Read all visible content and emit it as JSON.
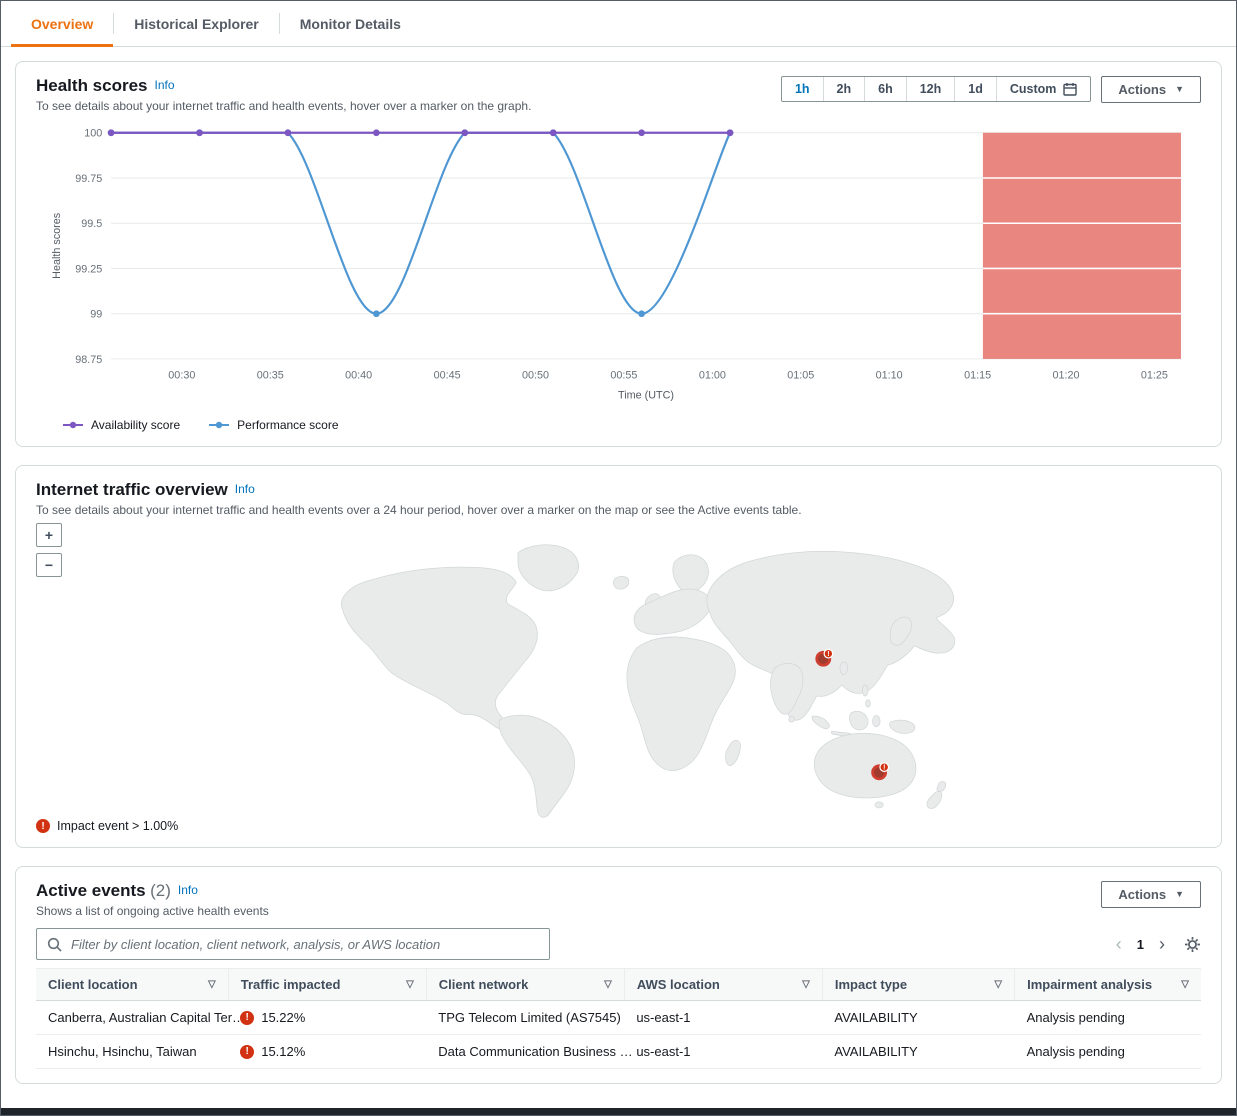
{
  "tabs": [
    {
      "label": "Overview",
      "active": true
    },
    {
      "label": "Historical Explorer",
      "active": false
    },
    {
      "label": "Monitor Details",
      "active": false
    }
  ],
  "icons": {
    "caret": "▼",
    "filter": "▽",
    "prev": "‹",
    "next": "›",
    "error": "!"
  },
  "health_scores": {
    "title": "Health scores",
    "info_label": "Info",
    "description": "To see details about your internet traffic and health events, hover over a marker on the graph.",
    "range_options": [
      "1h",
      "2h",
      "6h",
      "12h",
      "1d",
      "Custom"
    ],
    "selected_range": "1h",
    "actions_label": "Actions",
    "legend": [
      {
        "label": "Availability score",
        "color": "#7d57c1"
      },
      {
        "label": "Performance score",
        "color": "#4e97d3"
      }
    ]
  },
  "chart_data": {
    "type": "line",
    "title": "Health scores",
    "xlabel": "Time (UTC)",
    "ylabel": "Health scores",
    "x_ticks": [
      "00:30",
      "00:35",
      "00:40",
      "00:45",
      "00:50",
      "00:55",
      "01:00",
      "01:05",
      "01:10",
      "01:15",
      "01:20",
      "01:25"
    ],
    "x_tick_minutes": [
      30,
      35,
      40,
      45,
      50,
      55,
      60,
      65,
      70,
      75,
      80,
      85
    ],
    "x_domain_minutes": [
      26,
      86.5
    ],
    "y_tick_labels": [
      "100",
      "99.75",
      "99.5",
      "99.25",
      "99",
      "98.75"
    ],
    "y_tick_values": [
      100,
      99.75,
      99.5,
      99.25,
      99,
      98.75
    ],
    "ylim": [
      98.75,
      100
    ],
    "grid": true,
    "legend_position": "bottom",
    "series": [
      {
        "name": "Availability score",
        "color": "#7d57c1",
        "smooth": false,
        "x_minutes": [
          26,
          31,
          36,
          41,
          46,
          51,
          56,
          61
        ],
        "values": [
          100,
          100,
          100,
          100,
          100,
          100,
          100,
          100
        ]
      },
      {
        "name": "Performance score",
        "color": "#4e97d3",
        "smooth": true,
        "x_minutes": [
          26,
          31,
          36,
          41,
          46,
          51,
          56,
          61
        ],
        "values": [
          100,
          100,
          100,
          99,
          100,
          100,
          99,
          100
        ]
      }
    ],
    "impaired_region": {
      "start_minute": 75.3,
      "end_minute": 86.5,
      "color": "#e8867f"
    }
  },
  "traffic_overview": {
    "title": "Internet traffic overview",
    "info_label": "Info",
    "description": "To see details about your internet traffic and health events over a 24 hour period, hover over a marker on the map or see the Active events table.",
    "zoom_in_label": "+",
    "zoom_out_label": "−",
    "impact_legend": "Impact event > 1.00%",
    "markers": [
      {
        "name": "china-coast",
        "x": 800,
        "y": 148
      },
      {
        "name": "southeast-australia",
        "x": 860,
        "y": 270
      }
    ]
  },
  "active_events": {
    "title": "Active events",
    "count": "(2)",
    "info_label": "Info",
    "description": "Shows a list of ongoing active health events",
    "actions_label": "Actions",
    "filter_placeholder": "Filter by client location, client network, analysis, or AWS location",
    "page": "1",
    "columns": [
      "Client location",
      "Traffic impacted",
      "Client network",
      "AWS location",
      "Impact type",
      "Impairment analysis"
    ],
    "rows": [
      {
        "client_location": "Canberra, Australian Capital Ter…",
        "traffic_impacted": "15.22%",
        "client_network": "TPG Telecom Limited (AS7545)",
        "aws_location": "us-east-1",
        "impact_type": "AVAILABILITY",
        "impairment_analysis": "Analysis pending"
      },
      {
        "client_location": "Hsinchu, Hsinchu, Taiwan",
        "traffic_impacted": "15.12%",
        "client_network": "Data Communication Business …",
        "aws_location": "us-east-1",
        "impact_type": "AVAILABILITY",
        "impairment_analysis": "Analysis pending"
      }
    ]
  }
}
